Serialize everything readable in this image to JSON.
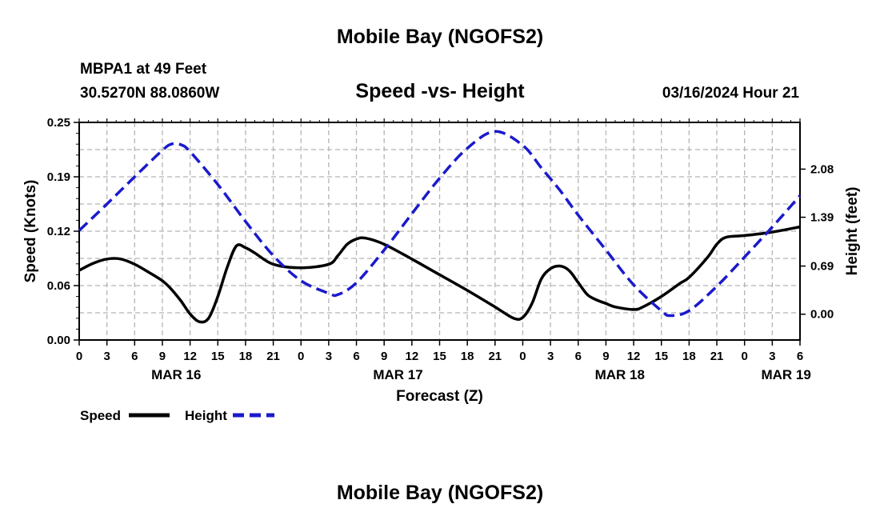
{
  "page": {
    "title_top": "Mobile Bay (NGOFS2)",
    "title_bottom": "Mobile Bay (NGOFS2)",
    "station": "MBPA1 at 49 Feet",
    "coords": "30.5270N  88.0860W",
    "datetime": "03/16/2024 Hour 21"
  },
  "colors": {
    "speed": "#000000",
    "height": "#1a1acc",
    "grid": "#b4b4b4"
  },
  "chart_data": {
    "type": "line",
    "title": "Speed -vs- Height",
    "xlabel": "Forecast (Z)",
    "ylabel": "Speed (Knots)",
    "ylabel_right": "Height (feet)",
    "x_range_hours": [
      0,
      78
    ],
    "x_tick_labels": [
      "0",
      "3",
      "6",
      "9",
      "12",
      "15",
      "18",
      "21",
      "0",
      "3",
      "6",
      "9",
      "12",
      "15",
      "18",
      "21",
      "0",
      "3",
      "6",
      "9",
      "12",
      "15",
      "18",
      "21",
      "0",
      "3",
      "6"
    ],
    "date_labels": [
      {
        "hour": 10.5,
        "label": "MAR 16"
      },
      {
        "hour": 34.5,
        "label": "MAR 17"
      },
      {
        "hour": 58.5,
        "label": "MAR 18"
      },
      {
        "hour": 76.5,
        "label": "MAR 19"
      }
    ],
    "y_left": {
      "range": [
        0,
        0.25
      ],
      "ticks": [
        "0.00",
        "0.06",
        "0.12",
        "0.19",
        "0.25"
      ]
    },
    "y_right": {
      "range": [
        -0.37,
        2.75
      ],
      "ticks": [
        "0.00",
        "0.69",
        "1.39",
        "2.08"
      ]
    },
    "legend": [
      {
        "name": "Speed"
      },
      {
        "name": "Height"
      }
    ],
    "series": [
      {
        "name": "Speed",
        "axis": "left",
        "style": "solid",
        "x": [
          0,
          1.5,
          3,
          4.5,
          6,
          7.5,
          9,
          10,
          11,
          12,
          13,
          14,
          15,
          16,
          17,
          18,
          19,
          21,
          24,
          27,
          28,
          29,
          30,
          31,
          33,
          36,
          39,
          42,
          45,
          47,
          48,
          49,
          50,
          51,
          52,
          53,
          54,
          55,
          56,
          57,
          58,
          60,
          61,
          63,
          65,
          66,
          68,
          69,
          70,
          72,
          75,
          78
        ],
        "y": [
          0.08,
          0.088,
          0.093,
          0.093,
          0.087,
          0.078,
          0.068,
          0.058,
          0.045,
          0.03,
          0.021,
          0.025,
          0.05,
          0.083,
          0.108,
          0.106,
          0.1,
          0.087,
          0.083,
          0.087,
          0.097,
          0.11,
          0.116,
          0.117,
          0.11,
          0.093,
          0.075,
          0.057,
          0.038,
          0.025,
          0.026,
          0.042,
          0.07,
          0.082,
          0.085,
          0.08,
          0.066,
          0.052,
          0.046,
          0.042,
          0.038,
          0.035,
          0.038,
          0.05,
          0.065,
          0.072,
          0.095,
          0.11,
          0.118,
          0.12,
          0.124,
          0.13
        ]
      },
      {
        "name": "Height",
        "axis": "right",
        "style": "dashed",
        "x": [
          0,
          3,
          6,
          9,
          10,
          11,
          12,
          15,
          18,
          21,
          24,
          27,
          28,
          30,
          33,
          36,
          39,
          42,
          45,
          48,
          50,
          52,
          54,
          57,
          60,
          63,
          64,
          66,
          69,
          72,
          75,
          78
        ],
        "y": [
          1.2,
          1.58,
          1.97,
          2.35,
          2.44,
          2.43,
          2.33,
          1.86,
          1.33,
          0.84,
          0.48,
          0.3,
          0.28,
          0.45,
          0.92,
          1.44,
          1.95,
          2.38,
          2.62,
          2.42,
          2.1,
          1.78,
          1.42,
          0.92,
          0.42,
          0.05,
          -0.02,
          0.05,
          0.4,
          0.82,
          1.25,
          1.7
        ]
      }
    ]
  }
}
